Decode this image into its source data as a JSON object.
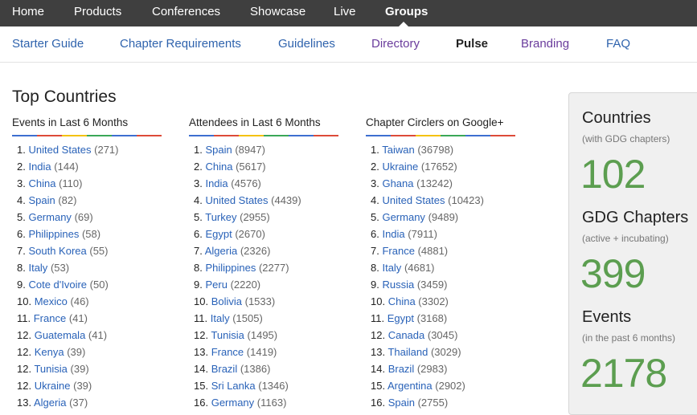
{
  "top_nav": {
    "items": [
      {
        "label": "Home"
      },
      {
        "label": "Products"
      },
      {
        "label": "Conferences"
      },
      {
        "label": "Showcase"
      },
      {
        "label": "Live"
      },
      {
        "label": "Groups"
      }
    ],
    "active": "Groups"
  },
  "sub_nav": {
    "items": [
      {
        "label": "Starter Guide"
      },
      {
        "label": "Chapter Requirements"
      },
      {
        "label": "Guidelines"
      },
      {
        "label": "Directory"
      },
      {
        "label": "Pulse"
      },
      {
        "label": "Branding"
      },
      {
        "label": "FAQ"
      }
    ],
    "active": "Pulse",
    "visited_color": "#6a3c9c",
    "link_color": "#2f63ad"
  },
  "page": {
    "title": "Top Countries"
  },
  "rule_colors": [
    "#3d6fd0",
    "#dd4b39",
    "#f4c20d",
    "#3aa757",
    "#3d6fd0",
    "#dd4b39"
  ],
  "columns": [
    {
      "heading": "Events in Last 6 Months",
      "rows": [
        {
          "rank": "1.",
          "name": "United States",
          "count": "(271)"
        },
        {
          "rank": "2.",
          "name": "India",
          "count": "(144)"
        },
        {
          "rank": "3.",
          "name": "China",
          "count": "(110)"
        },
        {
          "rank": "4.",
          "name": "Spain",
          "count": "(82)"
        },
        {
          "rank": "5.",
          "name": "Germany",
          "count": "(69)"
        },
        {
          "rank": "6.",
          "name": "Philippines",
          "count": "(58)"
        },
        {
          "rank": "7.",
          "name": "South Korea",
          "count": "(55)"
        },
        {
          "rank": "8.",
          "name": "Italy",
          "count": "(53)"
        },
        {
          "rank": "9.",
          "name": "Cote d'Ivoire",
          "count": "(50)"
        },
        {
          "rank": "10.",
          "name": "Mexico",
          "count": "(46)"
        },
        {
          "rank": "11.",
          "name": "France",
          "count": "(41)"
        },
        {
          "rank": "12.",
          "name": "Guatemala",
          "count": "(41)"
        },
        {
          "rank": "12.",
          "name": "Kenya",
          "count": "(39)"
        },
        {
          "rank": "12.",
          "name": "Tunisia",
          "count": "(39)"
        },
        {
          "rank": "12.",
          "name": "Ukraine",
          "count": "(39)"
        },
        {
          "rank": "13.",
          "name": "Algeria",
          "count": "(37)"
        }
      ]
    },
    {
      "heading": "Attendees in Last 6 Months",
      "rows": [
        {
          "rank": "1.",
          "name": "Spain",
          "count": "(8947)"
        },
        {
          "rank": "2.",
          "name": "China",
          "count": "(5617)"
        },
        {
          "rank": "3.",
          "name": "India",
          "count": "(4576)"
        },
        {
          "rank": "4.",
          "name": "United States",
          "count": "(4439)"
        },
        {
          "rank": "5.",
          "name": "Turkey",
          "count": "(2955)"
        },
        {
          "rank": "6.",
          "name": "Egypt",
          "count": "(2670)"
        },
        {
          "rank": "7.",
          "name": "Algeria",
          "count": "(2326)"
        },
        {
          "rank": "8.",
          "name": "Philippines",
          "count": "(2277)"
        },
        {
          "rank": "9.",
          "name": "Peru",
          "count": "(2220)"
        },
        {
          "rank": "10.",
          "name": "Bolivia",
          "count": "(1533)"
        },
        {
          "rank": "11.",
          "name": "Italy",
          "count": "(1505)"
        },
        {
          "rank": "12.",
          "name": "Tunisia",
          "count": "(1495)"
        },
        {
          "rank": "13.",
          "name": "France",
          "count": "(1419)"
        },
        {
          "rank": "14.",
          "name": "Brazil",
          "count": "(1386)"
        },
        {
          "rank": "15.",
          "name": "Sri Lanka",
          "count": "(1346)"
        },
        {
          "rank": "16.",
          "name": "Germany",
          "count": "(1163)"
        }
      ]
    },
    {
      "heading": "Chapter Circlers on Google+",
      "rows": [
        {
          "rank": "1.",
          "name": "Taiwan",
          "count": "(36798)"
        },
        {
          "rank": "2.",
          "name": "Ukraine",
          "count": "(17652)"
        },
        {
          "rank": "3.",
          "name": "Ghana",
          "count": "(13242)"
        },
        {
          "rank": "4.",
          "name": "United States",
          "count": "(10423)"
        },
        {
          "rank": "5.",
          "name": "Germany",
          "count": "(9489)"
        },
        {
          "rank": "6.",
          "name": "India",
          "count": "(7911)"
        },
        {
          "rank": "7.",
          "name": "France",
          "count": "(4881)"
        },
        {
          "rank": "8.",
          "name": "Italy",
          "count": "(4681)"
        },
        {
          "rank": "9.",
          "name": "Russia",
          "count": "(3459)"
        },
        {
          "rank": "10.",
          "name": "China",
          "count": "(3302)"
        },
        {
          "rank": "11.",
          "name": "Egypt",
          "count": "(3168)"
        },
        {
          "rank": "12.",
          "name": "Canada",
          "count": "(3045)"
        },
        {
          "rank": "13.",
          "name": "Thailand",
          "count": "(3029)"
        },
        {
          "rank": "14.",
          "name": "Brazil",
          "count": "(2983)"
        },
        {
          "rank": "15.",
          "name": "Argentina",
          "count": "(2902)"
        },
        {
          "rank": "16.",
          "name": "Spain",
          "count": "(2755)"
        }
      ]
    }
  ],
  "stats": {
    "countries": {
      "title": "Countries",
      "subtitle": "(with GDG chapters)",
      "value": "102"
    },
    "chapters": {
      "title": "GDG Chapters",
      "subtitle": "(active + incubating)",
      "value": "399"
    },
    "events": {
      "title": "Events",
      "subtitle": "(in the past 6 months)",
      "value": "2178"
    }
  }
}
